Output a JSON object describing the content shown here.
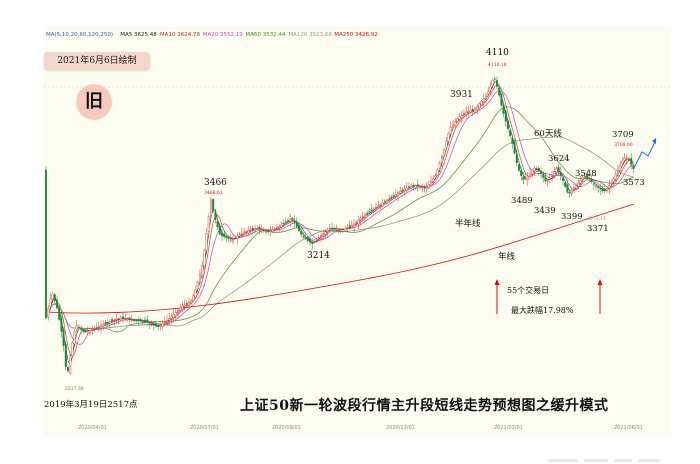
{
  "legend": [
    {
      "text": "MA(5,10,20,60,120,250)",
      "color": "#3b5aa8"
    },
    {
      "text": "MA5 3625.48",
      "color": "#222222"
    },
    {
      "text": "MA10 3624.78",
      "color": "#b03030"
    },
    {
      "text": "MA20 3552.19",
      "color": "#b84fc2"
    },
    {
      "text": "MA60 3532.44",
      "color": "#4c8c2e"
    },
    {
      "text": "MA120 3523.68",
      "color": "#999999"
    },
    {
      "text": "MA250 3426.92",
      "color": "#d01010"
    }
  ],
  "date_badge": "2021年6月6日绘制",
  "old_badge": "旧",
  "title": "上证50新一轮波段行情主升段短线走势预想图之缓升模式",
  "start_label": "2019年3月19日2517点",
  "chart_data": {
    "type": "candlestick",
    "x_ticks": [
      "2020/04/01",
      "2020/07/01",
      "2020/09/01",
      "2020/12/01",
      "2021/03/01",
      "2021/06/01"
    ],
    "peak_labels": [
      {
        "text": "2517.30",
        "value": 2517.3,
        "color": "#2a8a2a"
      },
      {
        "text": "3466",
        "value": 3466
      },
      {
        "text": "3466.63",
        "value": 3466.63,
        "color": "#d01010"
      },
      {
        "text": "3214",
        "value": 3214
      },
      {
        "text": "3931",
        "value": 3931
      },
      {
        "text": "4110",
        "value": 4110
      },
      {
        "text": "4110.18",
        "value": 4110.18,
        "color": "#d01010"
      },
      {
        "text": "3489",
        "value": 3489
      },
      {
        "text": "3439",
        "value": 3439
      },
      {
        "text": "3624",
        "value": 3624
      },
      {
        "text": "3548",
        "value": 3548
      },
      {
        "text": "3399",
        "value": 3399
      },
      {
        "text": "3371",
        "value": 3371
      },
      {
        "text": "3371.13",
        "value": 3371.13,
        "color": "#888888"
      },
      {
        "text": "3709",
        "value": 3709
      },
      {
        "text": "3709.00",
        "value": 3709.0,
        "color": "#d01010"
      },
      {
        "text": "3573",
        "value": 3573
      }
    ],
    "annotations": [
      "60天线",
      "半年线",
      "年线",
      "55个交易日",
      "最大跌幅17.98%"
    ],
    "moving_averages": [
      "MA5",
      "MA10",
      "MA20",
      "MA60",
      "MA120",
      "MA250"
    ]
  }
}
